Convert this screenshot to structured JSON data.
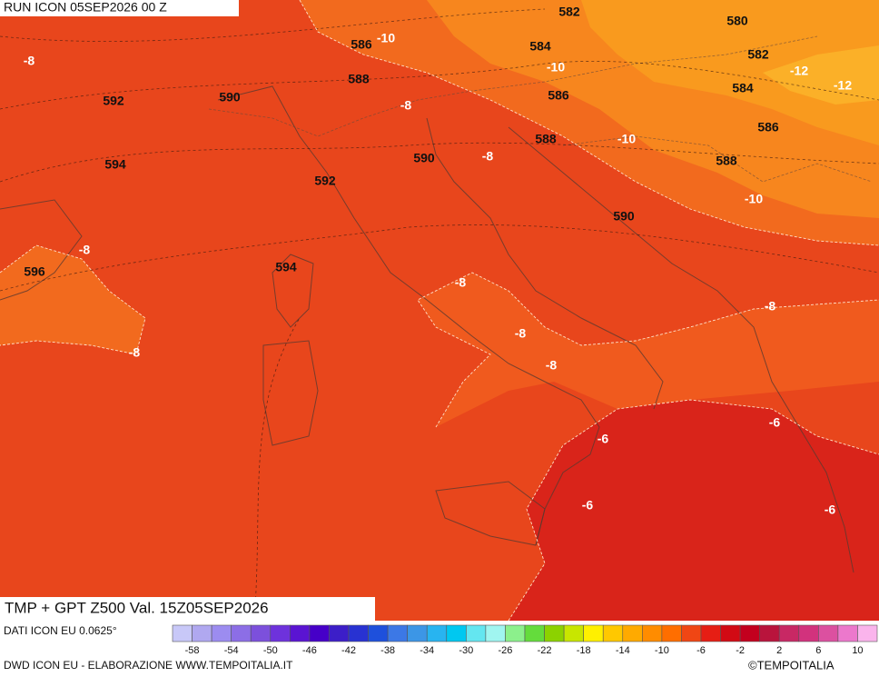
{
  "header": {
    "run": "RUN ICON 05SEP2026 00 Z",
    "product": "TMP + GPT Z500 Val. 15Z05SEP2026"
  },
  "gpt_labels": [
    "582",
    "580",
    "586",
    "584",
    "582",
    "588",
    "586",
    "584",
    "592",
    "590",
    "586",
    "588",
    "590",
    "594",
    "588",
    "592",
    "590",
    "594",
    "596"
  ],
  "tmp_labels": [
    "-10",
    "-8",
    "-10",
    "-12",
    "-12",
    "-8",
    "-10",
    "-8",
    "-10",
    "-8",
    "-8",
    "-8",
    "-8",
    "-8",
    "-8",
    "-6",
    "-6",
    "-6",
    "-6"
  ],
  "colorbar": {
    "labels": [
      -58,
      -54,
      -50,
      -46,
      -42,
      -38,
      -34,
      -30,
      -26,
      -22,
      -18,
      -14,
      -10,
      -6,
      -2,
      2,
      6,
      10
    ],
    "colors": [
      "#c8c8f8",
      "#b0a8f0",
      "#9c8cf0",
      "#8c6ee6",
      "#7c50dc",
      "#6e32dc",
      "#5a14d2",
      "#4600c8",
      "#3c1ec8",
      "#2832d2",
      "#1e50dc",
      "#3c78e6",
      "#3c96e6",
      "#28b4f0",
      "#00c8f0",
      "#64e6f0",
      "#a0f5f0",
      "#8cf08c",
      "#64dc3c",
      "#8cd200",
      "#c8e600",
      "#fff000",
      "#ffc800",
      "#ffaa00",
      "#ff8c00",
      "#ff6e00",
      "#f04614",
      "#e61e14",
      "#d20a14",
      "#c3001e",
      "#b9143c",
      "#c82864",
      "#d2327d",
      "#dc50a0",
      "#ec78cc",
      "#fab4ec"
    ]
  },
  "footer": {
    "source": "DATI ICON EU 0.0625°",
    "credit": "DWD ICON EU - ELABORAZIONE WWW.TEMPOITALIA.IT",
    "copyright": "©TEMPOITALIA"
  }
}
